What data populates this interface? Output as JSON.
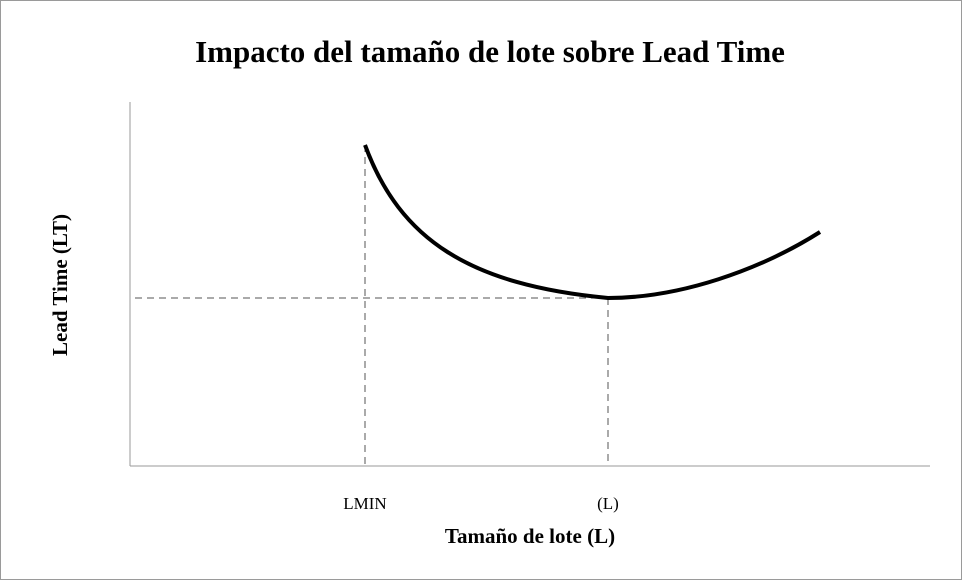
{
  "title": "Impacto del tamaño de lote sobre Lead Time",
  "x_axis_label": "Tamaño de lote (L)",
  "y_axis_label": "Lead Time (LT)",
  "markers": [
    "LMIN",
    "(L)"
  ]
}
